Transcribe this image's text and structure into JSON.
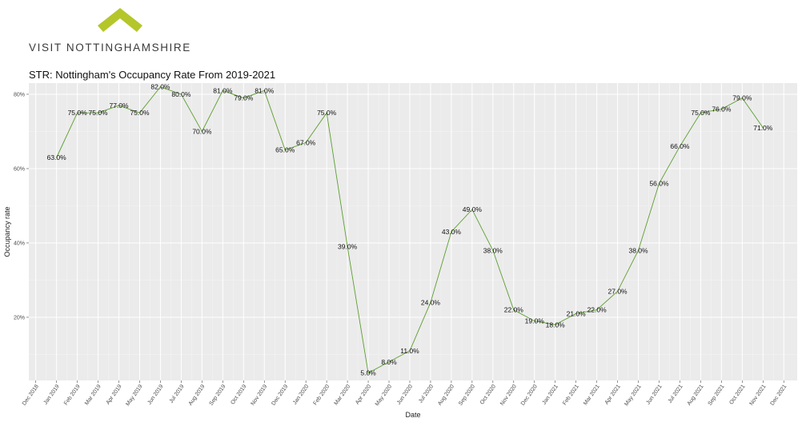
{
  "brand": {
    "name": "VISIT NOTTINGHAMSHIRE",
    "accent": "#b5c62b"
  },
  "chart_data": {
    "type": "line",
    "title": "STR: Nottingham's Occupancy Rate From 2019-2021",
    "xlabel": "Date",
    "ylabel": "Occupancy rate",
    "x_ticks": [
      "Dec 2018",
      "Jan 2019",
      "Feb 2019",
      "Mar 2019",
      "Apr 2019",
      "May 2019",
      "Jun 2019",
      "Jul 2019",
      "Aug 2019",
      "Sep 2019",
      "Oct 2019",
      "Nov 2019",
      "Dec 2019",
      "Jan 2020",
      "Feb 2020",
      "Mar 2020",
      "Apr 2020",
      "May 2020",
      "Jun 2020",
      "Jul 2020",
      "Aug 2020",
      "Sep 2020",
      "Oct 2020",
      "Nov 2020",
      "Dec 2020",
      "Jan 2021",
      "Feb 2021",
      "Mar 2021",
      "Apr 2021",
      "May 2021",
      "Jun 2021",
      "Jul 2021",
      "Aug 2021",
      "Sep 2021",
      "Oct 2021",
      "Nov 2021",
      "Dec 2021"
    ],
    "y_ticks": [
      "20%",
      "40%",
      "60%",
      "80%"
    ],
    "y_tick_values": [
      20,
      40,
      60,
      80
    ],
    "ylim": [
      3,
      83
    ],
    "grid": true,
    "series": [
      {
        "color": "#5c9e2e",
        "points": [
          {
            "x": "Jan 2019",
            "y": 63,
            "label": "63.0%"
          },
          {
            "x": "Feb 2019",
            "y": 75,
            "label": "75.0%"
          },
          {
            "x": "Mar 2019",
            "y": 75,
            "label": "75.0%"
          },
          {
            "x": "Apr 2019",
            "y": 77,
            "label": "77.0%"
          },
          {
            "x": "May 2019",
            "y": 75,
            "label": "75.0%"
          },
          {
            "x": "Jun 2019",
            "y": 82,
            "label": "82.0%"
          },
          {
            "x": "Jul 2019",
            "y": 80,
            "label": "80.0%"
          },
          {
            "x": "Aug 2019",
            "y": 70,
            "label": "70.0%"
          },
          {
            "x": "Sep 2019",
            "y": 81,
            "label": "81.0%"
          },
          {
            "x": "Oct 2019",
            "y": 79,
            "label": "79.0%"
          },
          {
            "x": "Nov 2019",
            "y": 81,
            "label": "81.0%"
          },
          {
            "x": "Dec 2019",
            "y": 65,
            "label": "65.0%"
          },
          {
            "x": "Jan 2020",
            "y": 67,
            "label": "67.0%"
          },
          {
            "x": "Feb 2020",
            "y": 75,
            "label": "75.0%"
          },
          {
            "x": "Mar 2020",
            "y": 39,
            "label": "39.0%"
          },
          {
            "x": "Apr 2020",
            "y": 5,
            "label": "5.0%"
          },
          {
            "x": "May 2020",
            "y": 8,
            "label": "8.0%"
          },
          {
            "x": "Jun 2020",
            "y": 11,
            "label": "11.0%"
          },
          {
            "x": "Jul 2020",
            "y": 24,
            "label": "24.0%"
          },
          {
            "x": "Aug 2020",
            "y": 43,
            "label": "43.0%"
          },
          {
            "x": "Sep 2020",
            "y": 49,
            "label": "49.0%"
          },
          {
            "x": "Oct 2020",
            "y": 38,
            "label": "38.0%"
          },
          {
            "x": "Nov 2020",
            "y": 22,
            "label": "22.0%"
          },
          {
            "x": "Dec 2020",
            "y": 19,
            "label": "19.0%"
          },
          {
            "x": "Jan 2021",
            "y": 18,
            "label": "18.0%"
          },
          {
            "x": "Feb 2021",
            "y": 21,
            "label": "21.0%"
          },
          {
            "x": "Mar 2021",
            "y": 22,
            "label": "22.0%"
          },
          {
            "x": "Apr 2021",
            "y": 27,
            "label": "27.0%"
          },
          {
            "x": "May 2021",
            "y": 38,
            "label": "38.0%"
          },
          {
            "x": "Jun 2021",
            "y": 56,
            "label": "56.0%"
          },
          {
            "x": "Jul 2021",
            "y": 66,
            "label": "66.0%"
          },
          {
            "x": "Aug 2021",
            "y": 75,
            "label": "75.0%"
          },
          {
            "x": "Sep 2021",
            "y": 76,
            "label": "76.0%"
          },
          {
            "x": "Oct 2021",
            "y": 79,
            "label": "79.0%"
          },
          {
            "x": "Nov 2021",
            "y": 71,
            "label": "71.0%"
          }
        ]
      }
    ]
  }
}
